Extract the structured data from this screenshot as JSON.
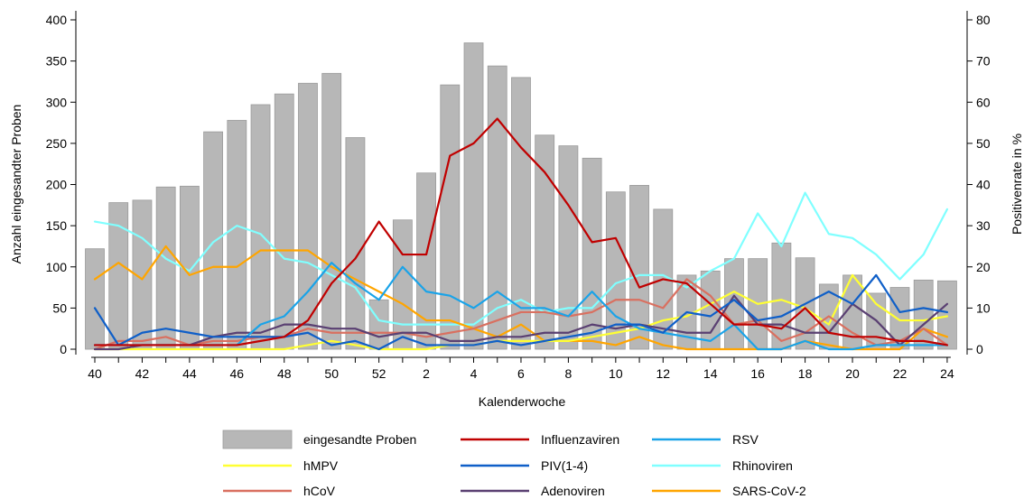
{
  "chart_data": {
    "type": "bar+line",
    "xlabel": "Kalenderwoche",
    "ylabel_left": "Anzahl eingesandter Proben",
    "ylabel_right": "Positivenrate in %",
    "ylim_left": [
      0,
      400
    ],
    "ylim_right": [
      0,
      80
    ],
    "yticks_left": [
      0,
      50,
      100,
      150,
      200,
      250,
      300,
      350,
      400
    ],
    "yticks_right": [
      0,
      10,
      20,
      30,
      40,
      50,
      60,
      70,
      80
    ],
    "weeks": [
      40,
      41,
      42,
      43,
      44,
      45,
      46,
      47,
      48,
      49,
      50,
      51,
      52,
      1,
      2,
      3,
      4,
      5,
      6,
      7,
      8,
      9,
      10,
      11,
      12,
      13,
      14,
      15,
      16,
      17,
      18,
      19,
      20,
      21,
      22,
      23,
      24
    ],
    "xtick_labels": [
      "40",
      "42",
      "44",
      "46",
      "48",
      "50",
      "52",
      "2",
      "4",
      "6",
      "8",
      "10",
      "12",
      "14",
      "16",
      "18",
      "20",
      "22",
      "24"
    ],
    "bars": {
      "name": "eingesandte Proben",
      "color": "#b7b7b7",
      "values": [
        122,
        178,
        181,
        197,
        198,
        264,
        278,
        297,
        310,
        323,
        335,
        257,
        60,
        157,
        214,
        321,
        372,
        344,
        330,
        260,
        247,
        232,
        191,
        199,
        170,
        90,
        95,
        110,
        110,
        129,
        111,
        79,
        90,
        68,
        75,
        84,
        83
      ]
    },
    "series": [
      {
        "name": "Influenzaviren",
        "color": "#c00000",
        "values": [
          1,
          1,
          1,
          1,
          1,
          1,
          1,
          2,
          3,
          7,
          16,
          22,
          31,
          23,
          23,
          47,
          50,
          56,
          49,
          43,
          35,
          26,
          27,
          15,
          17,
          16,
          11,
          6,
          6,
          5,
          10,
          4,
          3,
          3,
          2,
          2,
          1
        ]
      },
      {
        "name": "PIV(1-4)",
        "color": "#0f5fc8",
        "values": [
          10,
          1,
          4,
          5,
          4,
          3,
          3,
          3,
          3,
          4,
          1,
          2,
          0,
          3,
          1,
          1,
          1,
          2,
          1,
          2,
          3,
          4,
          6,
          6,
          4,
          9,
          8,
          12,
          7,
          8,
          11,
          14,
          11,
          18,
          9,
          10,
          9
        ]
      },
      {
        "name": "RSV",
        "color": "#1aa3e8",
        "values": [
          1,
          1,
          1,
          1,
          1,
          1,
          1,
          6,
          8,
          14,
          21,
          16,
          12,
          20,
          14,
          13,
          10,
          14,
          10,
          10,
          8,
          14,
          8,
          5,
          4,
          3,
          2,
          6,
          0,
          0,
          2,
          0,
          0,
          1,
          1,
          1,
          1
        ]
      },
      {
        "name": "hMPV",
        "color": "#ffff33",
        "values": [
          0,
          0,
          0,
          0,
          0,
          0,
          0,
          0,
          0,
          1,
          2,
          1,
          0,
          0,
          0,
          1,
          1,
          2,
          2,
          2,
          2,
          3,
          4,
          5,
          7,
          8,
          11,
          14,
          11,
          12,
          10,
          6,
          18,
          11,
          7,
          7,
          8
        ]
      },
      {
        "name": "Rhinoviren",
        "color": "#80ffff",
        "values": [
          31,
          30,
          27,
          22,
          19,
          26,
          30,
          28,
          22,
          21,
          18,
          15,
          7,
          6,
          6,
          6,
          6,
          10,
          12,
          9,
          10,
          10,
          16,
          18,
          18,
          15,
          19,
          22,
          33,
          25,
          38,
          28,
          27,
          23,
          17,
          23,
          34
        ]
      },
      {
        "name": "hCoV",
        "color": "#d97060",
        "values": [
          0,
          2,
          2,
          3,
          1,
          2,
          2,
          3,
          3,
          5,
          4,
          4,
          4,
          4,
          3,
          4,
          5,
          7,
          9,
          9,
          8,
          9,
          12,
          12,
          10,
          17,
          13,
          6,
          7,
          2,
          4,
          8,
          4,
          1,
          2,
          5,
          1
        ]
      },
      {
        "name": "Adenoviren",
        "color": "#5a4072",
        "values": [
          0,
          0,
          1,
          1,
          1,
          3,
          4,
          4,
          6,
          6,
          5,
          5,
          3,
          4,
          4,
          2,
          2,
          3,
          3,
          4,
          4,
          6,
          5,
          6,
          5,
          4,
          4,
          13,
          6,
          6,
          4,
          4,
          11,
          7,
          1,
          6,
          11
        ]
      },
      {
        "name": "SARS-CoV-2",
        "color": "#ffa500",
        "values": [
          17,
          21,
          17,
          25,
          18,
          20,
          20,
          24,
          24,
          24,
          20,
          17,
          14,
          11,
          7,
          7,
          5,
          3,
          6,
          2,
          2,
          2,
          1,
          3,
          1,
          0,
          0,
          0,
          0,
          0,
          2,
          1,
          0,
          0,
          0,
          5,
          3
        ]
      }
    ],
    "legend_placement": "bottom",
    "grid": false
  }
}
